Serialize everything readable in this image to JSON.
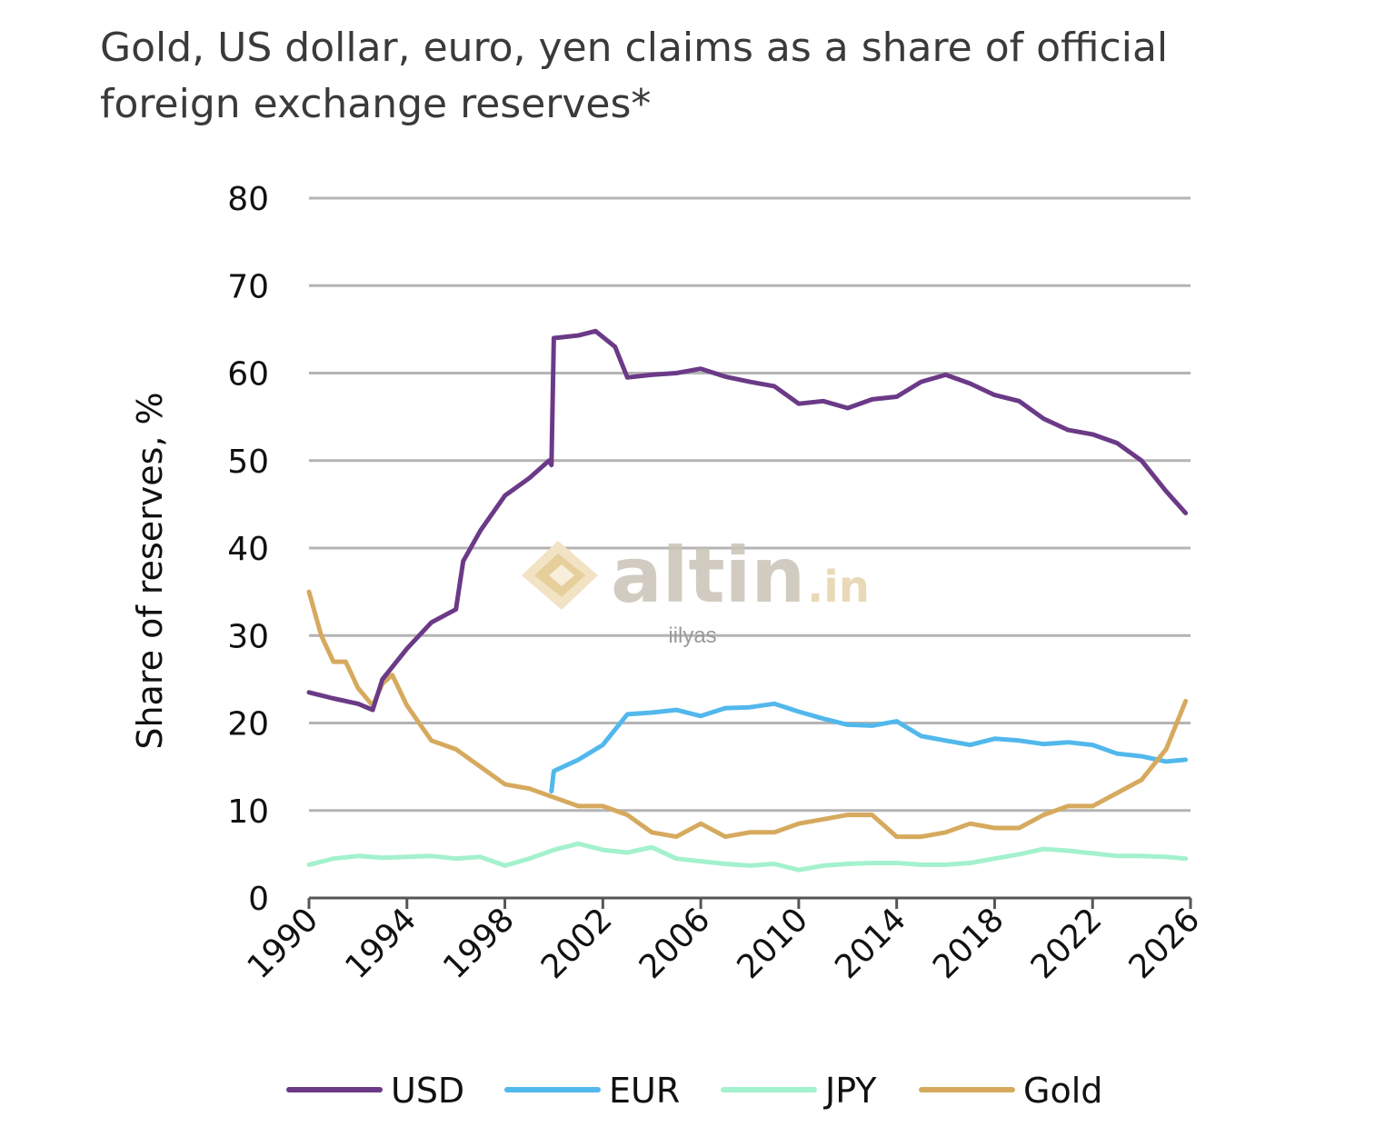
{
  "title": "Gold, US dollar, euro, yen claims as a share of official foreign exchange reserves*",
  "watermark": {
    "brand": "altin",
    "suffix": ".in",
    "author": "iilyas"
  },
  "chart_data": {
    "type": "line",
    "title": "Gold, US dollar, euro, yen claims as a share of official foreign exchange reserves*",
    "xlabel": "",
    "ylabel": "Share of reserves, %",
    "xlim": [
      1990,
      2026
    ],
    "ylim": [
      0,
      80
    ],
    "x_ticks": [
      "1990",
      "1994",
      "1998",
      "2002",
      "2006",
      "2010",
      "2014",
      "2018",
      "2022",
      "2026"
    ],
    "y_ticks": [
      "0",
      "10",
      "20",
      "30",
      "40",
      "50",
      "60",
      "70",
      "80"
    ],
    "grid": true,
    "legend_position": "bottom",
    "series": [
      {
        "name": "USD",
        "color": "#6b3a87",
        "x": [
          1990,
          1991,
          1992,
          1992.6,
          1993,
          1994,
          1995,
          1996,
          1996.3,
          1997,
          1998,
          1999,
          1999.8,
          1999.9,
          2000,
          2001,
          2001.7,
          2002.5,
          2003,
          2004,
          2005,
          2006,
          2007,
          2008,
          2009,
          2010,
          2011,
          2012,
          2013,
          2014,
          2015,
          2016,
          2017,
          2018,
          2019,
          2020,
          2021,
          2022,
          2023,
          2024,
          2025,
          2025.8
        ],
        "y": [
          23.5,
          22.8,
          22.2,
          21.5,
          25,
          28.5,
          31.5,
          33,
          38.5,
          42,
          46,
          48,
          50,
          49.5,
          64,
          64.3,
          64.8,
          63,
          59.5,
          59.8,
          60,
          60.5,
          59.6,
          59,
          58.5,
          56.5,
          56.8,
          56,
          57,
          57.3,
          59,
          59.8,
          58.8,
          57.5,
          56.8,
          54.8,
          53.5,
          53,
          52,
          50,
          46.5,
          44
        ]
      },
      {
        "name": "EUR",
        "color": "#52b8ec",
        "x": [
          1999.9,
          2000,
          2001,
          2002,
          2003,
          2004,
          2005,
          2006,
          2007,
          2008,
          2009,
          2010,
          2011,
          2012,
          2013,
          2014,
          2015,
          2016,
          2017,
          2018,
          2019,
          2020,
          2021,
          2022,
          2023,
          2024,
          2025,
          2025.8
        ],
        "y": [
          12.2,
          14.5,
          15.8,
          17.5,
          21,
          21.2,
          21.5,
          20.8,
          21.7,
          21.8,
          22.2,
          21.3,
          20.5,
          19.8,
          19.7,
          20.2,
          18.5,
          18,
          17.5,
          18.2,
          18,
          17.6,
          17.8,
          17.5,
          16.5,
          16.2,
          15.6,
          15.8
        ]
      },
      {
        "name": "JPY",
        "color": "#a3f1cd",
        "x": [
          1990,
          1991,
          1992,
          1993,
          1994,
          1995,
          1996,
          1997,
          1998,
          1999,
          2000,
          2001,
          2002,
          2003,
          2004,
          2005,
          2006,
          2007,
          2008,
          2009,
          2010,
          2011,
          2012,
          2013,
          2014,
          2015,
          2016,
          2017,
          2018,
          2019,
          2020,
          2021,
          2022,
          2023,
          2024,
          2025,
          2025.8
        ],
        "y": [
          3.8,
          4.5,
          4.8,
          4.6,
          4.7,
          4.8,
          4.5,
          4.7,
          3.7,
          4.5,
          5.5,
          6.2,
          5.5,
          5.2,
          5.8,
          4.5,
          4.2,
          3.9,
          3.7,
          3.9,
          3.2,
          3.7,
          3.9,
          4,
          4,
          3.8,
          3.8,
          4,
          4.5,
          5,
          5.6,
          5.4,
          5.1,
          4.8,
          4.8,
          4.7,
          4.5
        ]
      },
      {
        "name": "Gold",
        "color": "#d6aa5e",
        "x": [
          1990,
          1990.5,
          1991,
          1991.5,
          1992,
          1992.6,
          1993,
          1993.4,
          1994,
          1995,
          1996,
          1997,
          1998,
          1999,
          2000,
          2001,
          2002,
          2003,
          2004,
          2005,
          2006,
          2007,
          2008,
          2009,
          2010,
          2011,
          2012,
          2013,
          2014,
          2015,
          2016,
          2017,
          2018,
          2019,
          2020,
          2021,
          2022,
          2023,
          2024,
          2025,
          2025.8
        ],
        "y": [
          35,
          30,
          27,
          27,
          24,
          22,
          24.5,
          25.5,
          22,
          18,
          17,
          15,
          13,
          12.5,
          11.5,
          10.5,
          10.5,
          9.5,
          7.5,
          7,
          8.5,
          7,
          7.5,
          7.5,
          8.5,
          9,
          9.5,
          9.5,
          7,
          7,
          7.5,
          8.5,
          8,
          8,
          9.5,
          10.5,
          10.5,
          12,
          13.5,
          17,
          22.5
        ]
      }
    ]
  }
}
